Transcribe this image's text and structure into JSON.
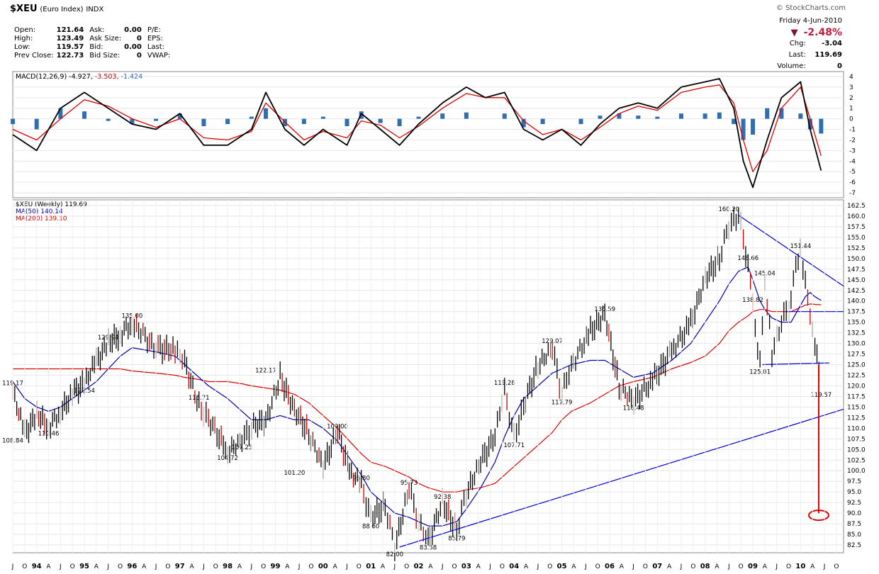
{
  "header": {
    "symbol": "$XEU",
    "name": "(Euro Index)",
    "exchange": "INDX",
    "brand": "© StockCharts.com",
    "date": "Friday  4-Jun-2010",
    "pct_change": "-2.48%",
    "chg_label": "Chg:",
    "chg_value": "-3.04",
    "last_label": "Last:",
    "last_value": "119.69",
    "volume_label": "Volume:",
    "volume_value": "0"
  },
  "quote": {
    "open_label": "Open:",
    "open": "121.64",
    "high_label": "High:",
    "high": "123.49",
    "low_label": "Low:",
    "low": "119.57",
    "prev_label": "Prev Close:",
    "prev": "122.73",
    "ask_label": "Ask:",
    "ask": "0.00",
    "asksize_label": "Ask Size:",
    "asksize": "0",
    "bid_label": "Bid:",
    "bid": "0.00",
    "bidsize_label": "Bid Size:",
    "bidsize": "0",
    "pe_label": "P/E:",
    "eps_label": "EPS:",
    "lastp_label": "Last:",
    "vwap_label": "VWAP:"
  },
  "colors": {
    "price": "#000000",
    "down": "#cc0000",
    "ma50": "#0000aa",
    "ma200": "#dd0000",
    "macd_hist": "#2f6fb0",
    "trend": "#0000dd",
    "target": "#dd0000"
  },
  "chart_data": [
    {
      "type": "line",
      "title": "MACD(12,26,9)",
      "legend": {
        "label": "MACD(12,26,9)",
        "values": [
          "-4.927",
          "-3.503",
          "-1.424"
        ]
      },
      "ylim": [
        -7,
        4
      ],
      "y_ticks": [
        "4",
        "3",
        "2",
        "1",
        "0",
        "-1",
        "-2",
        "-3",
        "-4",
        "-5",
        "-6",
        "-7"
      ],
      "x": [
        1993.5,
        1994.0,
        1994.5,
        1995.0,
        1995.5,
        1996.0,
        1996.5,
        1997.0,
        1997.5,
        1998.0,
        1998.5,
        1998.8,
        1999.2,
        1999.6,
        2000.0,
        2000.5,
        2000.8,
        2001.2,
        2001.6,
        2002.0,
        2002.5,
        2003.0,
        2003.4,
        2003.8,
        2004.2,
        2004.6,
        2005.0,
        2005.4,
        2005.8,
        2006.2,
        2006.6,
        2007.0,
        2007.5,
        2008.0,
        2008.3,
        2008.6,
        2008.8,
        2009.0,
        2009.3,
        2009.6,
        2010.0,
        2010.2,
        2010.43
      ],
      "series": [
        {
          "name": "MACD",
          "values": [
            -1.5,
            -3,
            1,
            2.5,
            1,
            -0.5,
            -1,
            0.5,
            -2.5,
            -2.5,
            -1,
            2.5,
            -1,
            -2.5,
            -1,
            -2.5,
            0.5,
            -1,
            -2.5,
            -0.5,
            1.5,
            3.0,
            2,
            2.5,
            -1,
            -2,
            -1,
            -2.5,
            -0.5,
            1,
            1.5,
            1,
            3,
            3.5,
            3.8,
            1,
            -4,
            -6.5,
            -2,
            2,
            3.5,
            -1,
            -4.9
          ]
        },
        {
          "name": "Signal",
          "values": [
            -1,
            -2,
            0,
            1.8,
            1.2,
            0,
            -0.8,
            0,
            -1.8,
            -2,
            -1.2,
            1.5,
            -0.3,
            -2,
            -1.2,
            -1.8,
            -0.2,
            -0.6,
            -1.8,
            -0.7,
            1,
            2.4,
            2,
            2,
            -0.2,
            -1.5,
            -1,
            -2,
            -0.8,
            0.5,
            1.2,
            0.8,
            2.5,
            3,
            3.2,
            1.5,
            -2,
            -5,
            -3,
            1,
            3,
            0,
            -3.5
          ]
        },
        {
          "name": "Histogram",
          "values": [
            -0.5,
            -1,
            1,
            0.7,
            -0.2,
            -0.5,
            -0.2,
            0.5,
            -0.7,
            -0.5,
            0.2,
            1,
            -0.7,
            -0.5,
            0.2,
            -0.7,
            0.7,
            -0.4,
            -0.7,
            0.2,
            0.5,
            0.6,
            0,
            0.5,
            -0.8,
            -0.5,
            0,
            -0.5,
            0.3,
            0.5,
            0.3,
            0.2,
            0.5,
            0.5,
            0.6,
            -0.5,
            -2,
            -1.5,
            1,
            1,
            0.5,
            -1,
            -1.4
          ]
        }
      ]
    },
    {
      "type": "line",
      "title": "$XEU (Weekly) 119.69",
      "legend": [
        {
          "label": "$XEU (Weekly) 119.69"
        },
        {
          "label": "MA(50) 140.14"
        },
        {
          "label": "MA(200) 139.10"
        }
      ],
      "ylim": [
        81.5,
        163.5
      ],
      "y_ticks": [
        "162.5",
        "160.0",
        "157.5",
        "155.0",
        "152.5",
        "150.0",
        "147.5",
        "145.0",
        "142.5",
        "140.0",
        "137.5",
        "135.0",
        "132.5",
        "130.0",
        "127.5",
        "125.0",
        "122.5",
        "120.0",
        "117.5",
        "115.0",
        "112.5",
        "110.0",
        "107.5",
        "105.0",
        "102.5",
        "100.0",
        "97.5",
        "95.0",
        "92.5",
        "90.0",
        "87.5",
        "85.0",
        "82.5"
      ],
      "x_ticks": [
        "J",
        "O",
        "94",
        "A",
        "J",
        "O",
        "95",
        "A",
        "J",
        "O",
        "96",
        "A",
        "J",
        "O",
        "97",
        "A",
        "J",
        "O",
        "98",
        "A",
        "J",
        "O",
        "99",
        "A",
        "J",
        "O",
        "00",
        "A",
        "J",
        "O",
        "01",
        "A",
        "J",
        "O",
        "02",
        "A",
        "J",
        "O",
        "03",
        "A",
        "J",
        "O",
        "04",
        "A",
        "J",
        "O",
        "05",
        "A",
        "J",
        "O",
        "06",
        "A",
        "J",
        "O",
        "07",
        "A",
        "J",
        "O",
        "08",
        "A",
        "J",
        "O",
        "09",
        "A",
        "J",
        "O",
        "10",
        "A",
        "J",
        "O"
      ],
      "x": [
        1993.5,
        1993.75,
        1994.0,
        1994.25,
        1994.5,
        1994.75,
        1995.0,
        1995.25,
        1995.5,
        1995.75,
        1996.0,
        1996.5,
        1996.9,
        1997.1,
        1997.4,
        1997.6,
        1998.0,
        1998.3,
        1998.5,
        1998.8,
        1999.1,
        1999.4,
        1999.7,
        2000.0,
        2000.3,
        2000.55,
        2000.8,
        2001.0,
        2001.3,
        2001.5,
        2001.8,
        2002.0,
        2002.2,
        2002.5,
        2002.8,
        2003.0,
        2003.3,
        2003.6,
        2003.8,
        2004.0,
        2004.2,
        2004.5,
        2004.8,
        2005.0,
        2005.2,
        2005.6,
        2005.9,
        2006.2,
        2006.5,
        2006.9,
        2007.3,
        2007.7,
        2008.0,
        2008.3,
        2008.5,
        2008.7,
        2008.9,
        2009.0,
        2009.15,
        2009.25,
        2009.4,
        2009.6,
        2009.8,
        2009.9,
        2010.0,
        2010.1,
        2010.2,
        2010.3,
        2010.43
      ],
      "series": [
        {
          "name": "$XEU",
          "values": [
            119.17,
            108.84,
            113,
            110.46,
            114,
            118,
            120.54,
            126,
            129.94,
            132,
            135.0,
            129,
            128,
            126,
            115,
            112,
            104.72,
            107.23,
            110,
            112,
            122.17,
            114,
            109,
            101.2,
            109.0,
            100,
            96.8,
            88.6,
            92,
            82.0,
            95.73,
            88,
            83.58,
            92.38,
            85.79,
            95,
            102,
            108,
            119.28,
            107.71,
            115,
            125,
            129.07,
            117.79,
            125,
            133,
            136.59,
            120,
            116.48,
            121,
            128,
            135,
            145,
            150,
            158,
            160.2,
            148.66,
            138.82,
            125.01,
            145.04,
            128,
            135,
            140,
            148,
            151.44,
            145,
            138,
            130,
            119.57
          ]
        },
        {
          "name": "MA(50)",
          "values": [
            121,
            117,
            115,
            114,
            115,
            117,
            119,
            121,
            124,
            127,
            129,
            128,
            127,
            125,
            122,
            120,
            117,
            114,
            112,
            112,
            113,
            112,
            112,
            110,
            107,
            103,
            99,
            95,
            92,
            90,
            89,
            88,
            87,
            87,
            88,
            91,
            96,
            102,
            108,
            113,
            117,
            120,
            123,
            124,
            125,
            126,
            126,
            124,
            122,
            123,
            126,
            130,
            135,
            140,
            144,
            147,
            148,
            145,
            140,
            138,
            136,
            135,
            135,
            137,
            139,
            141,
            142,
            141,
            140.14
          ]
        },
        {
          "name": "MA(200)",
          "values": [
            124,
            124,
            124,
            124,
            124,
            124,
            124,
            124,
            124,
            124,
            123.5,
            123,
            122.5,
            122,
            121.5,
            121,
            121,
            120.5,
            120,
            119.5,
            119,
            118,
            116,
            113,
            110,
            107,
            104,
            102,
            101,
            100,
            98.5,
            97,
            96,
            95,
            95,
            95.5,
            96,
            97,
            99,
            101,
            103,
            106,
            109,
            112,
            114,
            116,
            118,
            120,
            121,
            122,
            124,
            125.5,
            127,
            130,
            133,
            135,
            136.5,
            137.5,
            138,
            138,
            137.5,
            137.5,
            137.5,
            138,
            138.5,
            139,
            139.3,
            139.2,
            139.1
          ]
        }
      ],
      "price_labels": [
        "119.17",
        "108.84",
        "110.46",
        "120.54",
        "129.94",
        "135.00",
        "122.17",
        "115.71",
        "104.72",
        "107.23",
        "101.20",
        "109.00",
        "96.80",
        "88.60",
        "95.73",
        "82.00",
        "92.38",
        "83.58",
        "85.79",
        "119.28",
        "107.71",
        "129.07",
        "117.79",
        "136.59",
        "116.48",
        "160.20",
        "148.66",
        "145.04",
        "138.82",
        "125.01",
        "151.44",
        "119.57"
      ]
    }
  ]
}
